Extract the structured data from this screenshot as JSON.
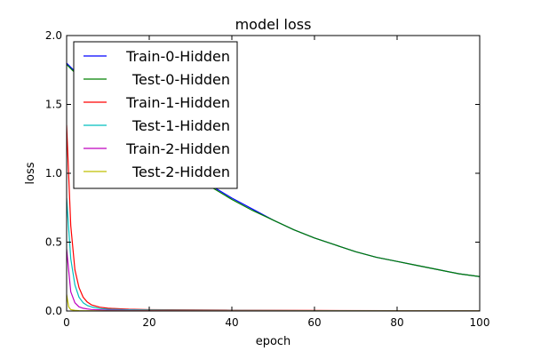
{
  "chart_data": {
    "type": "line",
    "title": "model loss",
    "xlabel": "epoch",
    "ylabel": "loss",
    "xlim": [
      0,
      100
    ],
    "ylim": [
      0.0,
      2.0
    ],
    "xticks": [
      0,
      20,
      40,
      60,
      80,
      100
    ],
    "yticks": [
      0.0,
      0.5,
      1.0,
      1.5,
      2.0
    ],
    "xtick_labels": [
      "0",
      "20",
      "40",
      "60",
      "80",
      "100"
    ],
    "ytick_labels": [
      "0.0",
      "0.5",
      "1.0",
      "1.5",
      "2.0"
    ],
    "grid": false,
    "legend_position": "top-left",
    "series": [
      {
        "name": "Train-0-Hidden",
        "color": "#0000ff",
        "x": [
          0,
          1,
          2,
          4,
          6,
          8,
          10,
          15,
          20,
          25,
          30,
          35,
          40,
          45,
          50,
          55,
          60,
          65,
          70,
          75,
          80,
          85,
          90,
          95,
          100
        ],
        "y": [
          1.8,
          1.77,
          1.74,
          1.68,
          1.62,
          1.56,
          1.5,
          1.37,
          1.24,
          1.12,
          1.01,
          0.91,
          0.82,
          0.74,
          0.66,
          0.59,
          0.53,
          0.48,
          0.43,
          0.39,
          0.36,
          0.33,
          0.3,
          0.27,
          0.25
        ]
      },
      {
        "name": "Test-0-Hidden",
        "color": "#008000",
        "x": [
          0,
          1,
          2,
          4,
          6,
          8,
          10,
          15,
          20,
          25,
          30,
          35,
          40,
          45,
          50,
          55,
          60,
          65,
          70,
          75,
          80,
          85,
          90,
          95,
          100
        ],
        "y": [
          1.79,
          1.76,
          1.73,
          1.67,
          1.61,
          1.55,
          1.49,
          1.36,
          1.23,
          1.11,
          1.0,
          0.9,
          0.81,
          0.73,
          0.66,
          0.59,
          0.53,
          0.48,
          0.43,
          0.39,
          0.36,
          0.33,
          0.3,
          0.27,
          0.25
        ]
      },
      {
        "name": "Train-1-Hidden",
        "color": "#ff0000",
        "x": [
          0,
          1,
          2,
          3,
          4,
          5,
          6,
          8,
          10,
          15,
          20,
          30,
          40,
          60,
          80,
          100
        ],
        "y": [
          1.35,
          0.62,
          0.3,
          0.17,
          0.1,
          0.065,
          0.045,
          0.028,
          0.02,
          0.013,
          0.01,
          0.008,
          0.006,
          0.004,
          0.003,
          0.002
        ]
      },
      {
        "name": "Test-1-Hidden",
        "color": "#00bfbf",
        "x": [
          0,
          1,
          2,
          3,
          4,
          5,
          6,
          8,
          10,
          15,
          20,
          30,
          40,
          60,
          80,
          100
        ],
        "y": [
          0.82,
          0.38,
          0.19,
          0.1,
          0.06,
          0.04,
          0.03,
          0.018,
          0.013,
          0.009,
          0.007,
          0.005,
          0.004,
          0.003,
          0.002,
          0.002
        ]
      },
      {
        "name": "Train-2-Hidden",
        "color": "#bf00bf",
        "x": [
          0,
          1,
          2,
          3,
          4,
          5,
          6,
          8,
          10,
          15,
          20,
          40,
          60,
          80,
          100
        ],
        "y": [
          0.45,
          0.14,
          0.06,
          0.03,
          0.02,
          0.015,
          0.011,
          0.008,
          0.006,
          0.004,
          0.003,
          0.002,
          0.001,
          0.001,
          0.001
        ]
      },
      {
        "name": "Test-2-Hidden",
        "color": "#bfbf00",
        "x": [
          0,
          0.5,
          1,
          2,
          3,
          5,
          10,
          20,
          40,
          60,
          80,
          100
        ],
        "y": [
          0.12,
          0.03,
          0.01,
          0.005,
          0.003,
          0.002,
          0.001,
          0.001,
          0.001,
          0.001,
          0.001,
          0.001
        ]
      }
    ]
  }
}
